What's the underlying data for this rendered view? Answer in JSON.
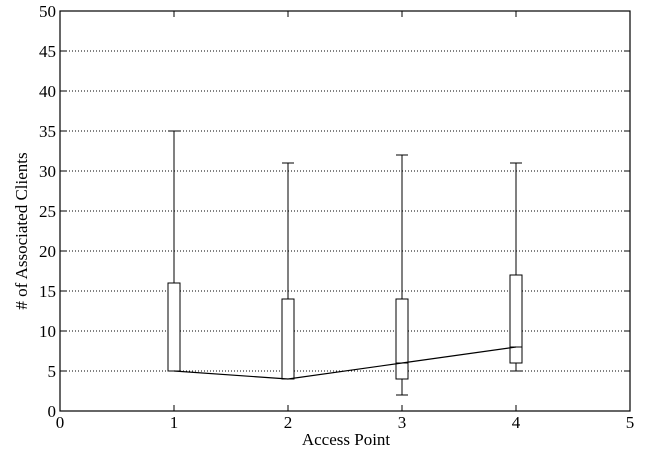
{
  "chart_data": {
    "type": "box",
    "xlabel": "Access Point",
    "ylabel": "# of Associated Clients",
    "xlim": [
      0,
      5
    ],
    "ylim": [
      0,
      50
    ],
    "xticks": [
      0,
      1,
      2,
      3,
      4,
      5
    ],
    "yticks": [
      0,
      5,
      10,
      15,
      20,
      25,
      30,
      35,
      40,
      45,
      50
    ],
    "grid": "horizontal-dotted",
    "boxes": [
      {
        "x": 1,
        "min": 5,
        "q1": 5,
        "median": 5,
        "q3": 16,
        "max": 35
      },
      {
        "x": 2,
        "min": 4,
        "q1": 4,
        "median": 4,
        "q3": 14,
        "max": 31
      },
      {
        "x": 3,
        "min": 2,
        "q1": 4,
        "median": 6,
        "q3": 14,
        "max": 32
      },
      {
        "x": 4,
        "min": 5,
        "q1": 6,
        "median": 8,
        "q3": 17,
        "max": 31
      }
    ],
    "median_line": true
  }
}
